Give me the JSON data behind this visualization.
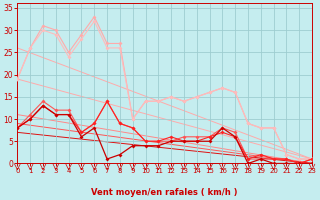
{
  "xlabel": "Vent moyen/en rafales ( km/h )",
  "xlim": [
    0,
    23
  ],
  "ylim": [
    0,
    36
  ],
  "yticks": [
    0,
    5,
    10,
    15,
    20,
    25,
    30,
    35
  ],
  "xticks": [
    0,
    1,
    2,
    3,
    4,
    5,
    6,
    7,
    8,
    9,
    10,
    11,
    12,
    13,
    14,
    15,
    16,
    17,
    18,
    19,
    20,
    21,
    22,
    23
  ],
  "background_color": "#c5edef",
  "grid_color": "#9ecdd0",
  "text_color": "#cc0000",
  "diag_lines": [
    {
      "x0": 0,
      "y0": 19,
      "x1": 23,
      "y1": 1,
      "color": "#ffaaaa",
      "lw": 0.7
    },
    {
      "x0": 0,
      "y0": 26,
      "x1": 23,
      "y1": 1,
      "color": "#ffaaaa",
      "lw": 0.7
    },
    {
      "x0": 0,
      "y0": 11,
      "x1": 23,
      "y1": 0,
      "color": "#ff8888",
      "lw": 0.7
    },
    {
      "x0": 0,
      "y0": 9,
      "x1": 23,
      "y1": 0,
      "color": "#ff5555",
      "lw": 0.7
    },
    {
      "x0": 0,
      "y0": 7,
      "x1": 23,
      "y1": 0,
      "color": "#dd1111",
      "lw": 0.7
    }
  ],
  "jagged_lines": [
    {
      "y": [
        19,
        26,
        31,
        30,
        25,
        29,
        33,
        27,
        27,
        10,
        14,
        14,
        15,
        14,
        15,
        16,
        17,
        16,
        9,
        8,
        8,
        2,
        1,
        1
      ],
      "color": "#ffaaaa",
      "lw": 0.8,
      "marker": "D",
      "ms": 2.0
    },
    {
      "y": [
        19,
        26,
        30,
        29,
        24,
        28,
        32,
        26,
        26,
        10,
        14,
        14,
        15,
        14,
        15,
        16,
        17,
        16,
        9,
        8,
        8,
        2,
        1,
        1
      ],
      "color": "#ffbbbb",
      "lw": 0.8,
      "marker": "D",
      "ms": 2.0
    },
    {
      "y": [
        8,
        11,
        14,
        12,
        12,
        7,
        9,
        14,
        9,
        8,
        5,
        5,
        5,
        6,
        6,
        6,
        8,
        7,
        1,
        1,
        1,
        1,
        0,
        1
      ],
      "color": "#ff5555",
      "lw": 0.8,
      "marker": "D",
      "ms": 2.0
    },
    {
      "y": [
        8,
        10,
        13,
        11,
        11,
        7,
        9,
        14,
        9,
        8,
        5,
        5,
        6,
        5,
        5,
        6,
        7,
        6,
        1,
        2,
        1,
        1,
        0,
        1
      ],
      "color": "#ff2222",
      "lw": 0.8,
      "marker": "D",
      "ms": 2.0
    },
    {
      "y": [
        8,
        10,
        13,
        11,
        11,
        6,
        8,
        1,
        2,
        4,
        4,
        4,
        5,
        5,
        5,
        5,
        8,
        6,
        0,
        1,
        0,
        0,
        0,
        0
      ],
      "color": "#cc0000",
      "lw": 0.9,
      "marker": "D",
      "ms": 2.0
    }
  ]
}
